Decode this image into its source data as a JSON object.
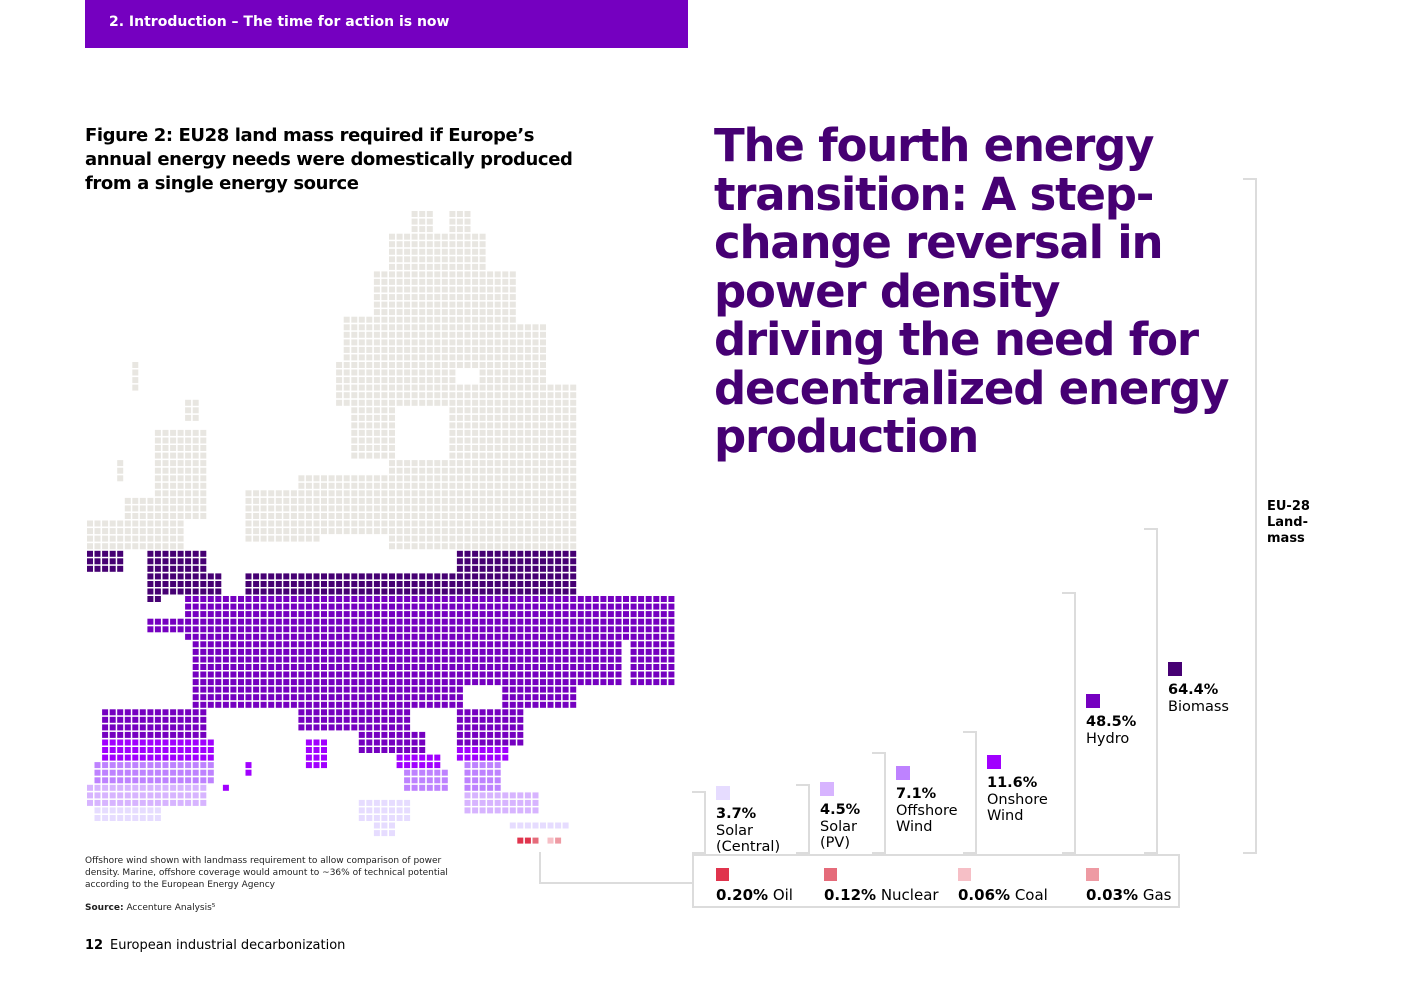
{
  "header": {
    "text": "2. Introduction – The time for action is now",
    "color": "#7500c0"
  },
  "figure": {
    "title": "Figure 2: EU28 land mass required if Europe’s annual energy needs were domestically produced from a single energy source",
    "footnote": "Offshore wind shown with landmass requirement to allow comparison of power density. Marine, offshore coverage would amount to ~36% of technical potential according to the European Energy Agency",
    "source_label": "Source:",
    "source_text": "Accenture Analysis⁵"
  },
  "headline": "The fourth energy transition: A step-change reversal in power density driving the need for decentralized energy production",
  "eu_label": "EU-28 Land-mass",
  "footer": {
    "page_number": "12",
    "label": "European industrial decarbonization"
  },
  "chart_data": {
    "type": "bar",
    "title": "Figure 2: EU28 land mass required if Europe’s annual energy needs were domestically produced from a single energy source",
    "unit": "% of EU-28 landmass",
    "categories": [
      "Biomass",
      "Hydro",
      "Onshore Wind",
      "Offshore Wind",
      "Solar (PV)",
      "Solar (Central)",
      "Oil",
      "Nuclear",
      "Coal",
      "Gas"
    ],
    "series": [
      {
        "values": [
          64.4,
          48.5,
          11.6,
          7.1,
          4.5,
          3.7,
          0.2,
          0.12,
          0.06,
          0.03
        ],
        "colors": [
          "#460073",
          "#7500c0",
          "#a100ff",
          "#be82ff",
          "#d7b4ff",
          "#e6dcff",
          "#e0344d",
          "#e56b7a",
          "#f6bfc6",
          "#ee9aa3"
        ]
      }
    ]
  },
  "items": [
    {
      "pct": "64.4%",
      "label1": "Biomass",
      "label2": "",
      "color": "#460073"
    },
    {
      "pct": "48.5%",
      "label1": "Hydro",
      "label2": "",
      "color": "#7500c0"
    },
    {
      "pct": "11.6%",
      "label1": "Onshore",
      "label2": "Wind",
      "color": "#a100ff"
    },
    {
      "pct": "7.1%",
      "label1": "Offshore",
      "label2": "Wind",
      "color": "#be82ff"
    },
    {
      "pct": "4.5%",
      "label1": "Solar",
      "label2": "(PV)",
      "color": "#d7b4ff"
    },
    {
      "pct": "3.7%",
      "label1": "Solar",
      "label2": "(Central)",
      "color": "#e6dcff"
    }
  ],
  "legend": [
    {
      "pct": "0.20%",
      "label": "Oil",
      "color": "#e0344d"
    },
    {
      "pct": "0.12%",
      "label": "Nuclear",
      "color": "#e56b7a"
    },
    {
      "pct": "0.06%",
      "label": "Coal",
      "color": "#f6bfc6"
    },
    {
      "pct": "0.03%",
      "label": "Gas",
      "color": "#ee9aa3"
    }
  ],
  "map_colors": {
    "land": "#e8e6e1",
    "biomass": "#460073",
    "hydro": "#7500c0",
    "onshore": "#a100ff",
    "offshore": "#be82ff",
    "solar_pv": "#d7b4ff",
    "solar_central": "#e6dcff",
    "oil": "#e0344d",
    "nuclear": "#e56b7a",
    "coal": "#f6bfc6",
    "gas": "#ee9aa3"
  }
}
